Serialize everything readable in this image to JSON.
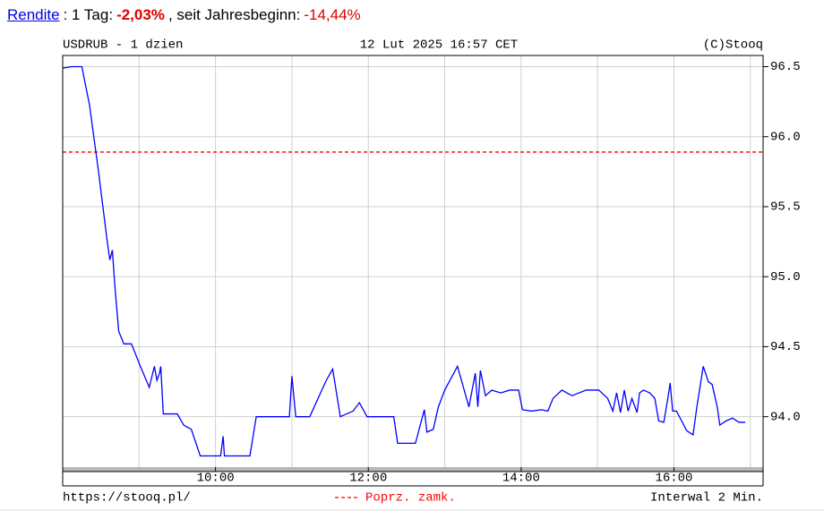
{
  "header": {
    "link": "Rendite",
    "day_label": ": 1 Tag:",
    "day_change": "-2,03%",
    "ytd_label": ", seit Jahresbeginn:",
    "ytd_change": "-14,44%"
  },
  "chart_data": {
    "type": "line",
    "title": "USDRUB - 1 dzien",
    "date": "12 Lut 2025 16:57 CET",
    "source": "(C)Stooq",
    "url": "https://stooq.pl/",
    "interval": "Interwal 2 Min.",
    "reference": {
      "name": "Poprz. zamk.",
      "value": 95.89,
      "color": "#ff0000"
    },
    "x": [
      480,
      487,
      495,
      501,
      508,
      515,
      517,
      519,
      521,
      524,
      528,
      534,
      541,
      548,
      552,
      554,
      556,
      557,
      559,
      570,
      575,
      581,
      588,
      604,
      606,
      607,
      627,
      632,
      658,
      660,
      663,
      674,
      687,
      692,
      698,
      708,
      713,
      719,
      740,
      743,
      757,
      764,
      766,
      771,
      775,
      780,
      790,
      799,
      804,
      806,
      808,
      812,
      817,
      824,
      831,
      838,
      841,
      848,
      856,
      861,
      865,
      872,
      880,
      891,
      901,
      908,
      912,
      915,
      918,
      921,
      924,
      927,
      931,
      933,
      936,
      941,
      945,
      948,
      952,
      955,
      957,
      959,
      962,
      966,
      970,
      975,
      978,
      983,
      987,
      990,
      994,
      996,
      1001,
      1006,
      1011,
      1016
    ],
    "series": [
      {
        "name": "USDRUB",
        "color": "#0000ff",
        "values": [
          96.49,
          96.5,
          96.5,
          96.23,
          95.76,
          95.25,
          95.12,
          95.19,
          94.93,
          94.61,
          94.52,
          94.52,
          94.36,
          94.21,
          94.36,
          94.26,
          94.31,
          94.36,
          94.02,
          94.02,
          93.94,
          93.91,
          93.72,
          93.72,
          93.86,
          93.72,
          93.72,
          94.0,
          94.0,
          94.29,
          94.0,
          94.0,
          94.26,
          94.34,
          94.0,
          94.04,
          94.1,
          94.0,
          94.0,
          93.81,
          93.81,
          94.05,
          93.89,
          93.91,
          94.07,
          94.19,
          94.36,
          94.07,
          94.31,
          94.07,
          94.33,
          94.15,
          94.19,
          94.17,
          94.19,
          94.19,
          94.05,
          94.04,
          94.05,
          94.04,
          94.13,
          94.19,
          94.15,
          94.19,
          94.19,
          94.13,
          94.04,
          94.17,
          94.03,
          94.19,
          94.04,
          94.13,
          94.03,
          94.17,
          94.19,
          94.17,
          94.13,
          93.97,
          93.96,
          94.12,
          94.24,
          94.04,
          94.04,
          93.97,
          93.9,
          93.87,
          94.07,
          94.36,
          94.25,
          94.23,
          94.07,
          93.94,
          93.97,
          93.99,
          93.96,
          93.96
        ]
      }
    ],
    "xlim": [
      480,
      1030
    ],
    "xticks": [
      {
        "value": 600,
        "label": "10:00"
      },
      {
        "value": 720,
        "label": "12:00"
      },
      {
        "value": 840,
        "label": "14:00"
      },
      {
        "value": 960,
        "label": "16:00"
      }
    ],
    "xminor": [
      540,
      660,
      780,
      900,
      1020
    ],
    "ylim": [
      93.64,
      96.58
    ],
    "yticks": [
      94.5,
      {
        "value": 94,
        "label": "94.0"
      },
      {
        "value": 95,
        "label": "95.0"
      },
      95.5,
      {
        "value": 96,
        "label": "96.0"
      },
      96.5
    ],
    "grid": true
  }
}
